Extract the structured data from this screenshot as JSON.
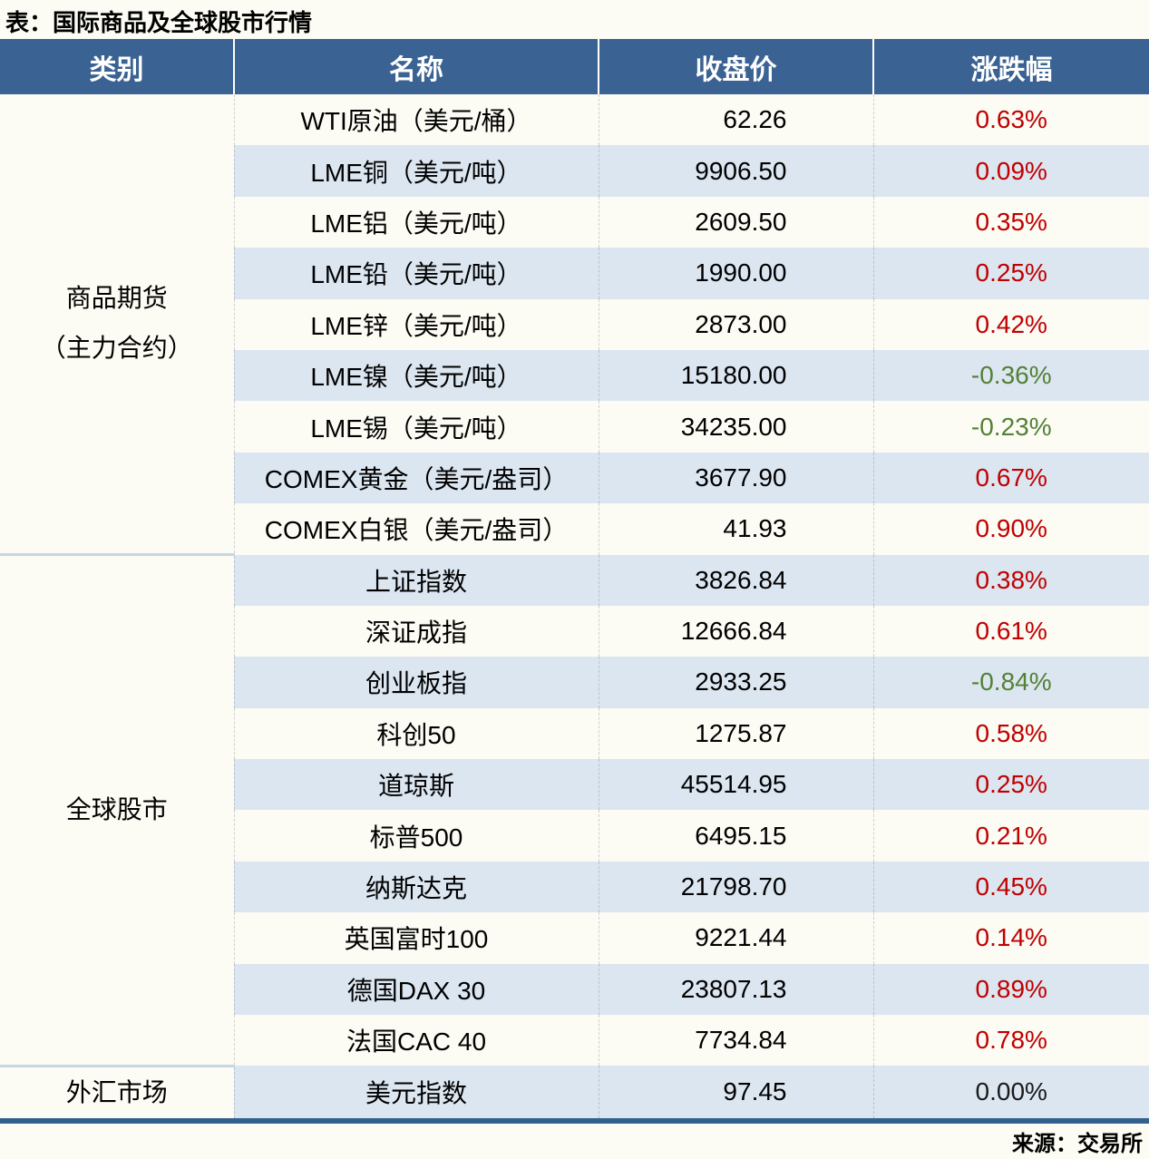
{
  "title": "表：国际商品及全球股市行情",
  "source": "来源：交易所",
  "colors": {
    "header_bg": "#3a6292",
    "header_fg": "#ffffff",
    "row_bg": "#fcfbf4",
    "alt_row": "#dce6f1",
    "up": "#c00000",
    "down": "#538135",
    "flat": "#1a1a1a",
    "bottom_border": "#33608f",
    "divider": "#c7d5e4"
  },
  "table": {
    "headers": [
      "类别",
      "名称",
      "收盘价",
      "涨跌幅"
    ],
    "groups": [
      {
        "category_lines": [
          "商品期货",
          "（主力合约）"
        ],
        "rows": [
          {
            "name": "WTI原油（美元/桶）",
            "close": "62.26",
            "change": "0.63%",
            "direction": "up"
          },
          {
            "name": "LME铜（美元/吨）",
            "close": "9906.50",
            "change": "0.09%",
            "direction": "up"
          },
          {
            "name": "LME铝（美元/吨）",
            "close": "2609.50",
            "change": "0.35%",
            "direction": "up"
          },
          {
            "name": "LME铅（美元/吨）",
            "close": "1990.00",
            "change": "0.25%",
            "direction": "up"
          },
          {
            "name": "LME锌（美元/吨）",
            "close": "2873.00",
            "change": "0.42%",
            "direction": "up"
          },
          {
            "name": "LME镍（美元/吨）",
            "close": "15180.00",
            "change": "-0.36%",
            "direction": "down"
          },
          {
            "name": "LME锡（美元/吨）",
            "close": "34235.00",
            "change": "-0.23%",
            "direction": "down"
          },
          {
            "name": "COMEX黄金（美元/盎司）",
            "close": "3677.90",
            "change": "0.67%",
            "direction": "up"
          },
          {
            "name": "COMEX白银（美元/盎司）",
            "close": "41.93",
            "change": "0.90%",
            "direction": "up"
          }
        ]
      },
      {
        "category_lines": [
          "全球股市"
        ],
        "rows": [
          {
            "name": "上证指数",
            "close": "3826.84",
            "change": "0.38%",
            "direction": "up"
          },
          {
            "name": "深证成指",
            "close": "12666.84",
            "change": "0.61%",
            "direction": "up"
          },
          {
            "name": "创业板指",
            "close": "2933.25",
            "change": "-0.84%",
            "direction": "down"
          },
          {
            "name": "科创50",
            "close": "1275.87",
            "change": "0.58%",
            "direction": "up"
          },
          {
            "name": "道琼斯",
            "close": "45514.95",
            "change": "0.25%",
            "direction": "up"
          },
          {
            "name": "标普500",
            "close": "6495.15",
            "change": "0.21%",
            "direction": "up"
          },
          {
            "name": "纳斯达克",
            "close": "21798.70",
            "change": "0.45%",
            "direction": "up"
          },
          {
            "name": "英国富时100",
            "close": "9221.44",
            "change": "0.14%",
            "direction": "up"
          },
          {
            "name": "德国DAX 30",
            "close": "23807.13",
            "change": "0.89%",
            "direction": "up"
          },
          {
            "name": "法国CAC 40",
            "close": "7734.84",
            "change": "0.78%",
            "direction": "up"
          }
        ]
      },
      {
        "category_lines": [
          "外汇市场"
        ],
        "rows": [
          {
            "name": "美元指数",
            "close": "97.45",
            "change": "0.00%",
            "direction": "flat"
          }
        ]
      }
    ]
  },
  "chart_data": {
    "type": "table",
    "title": "表：国际商品及全球股市行情",
    "columns": [
      "类别",
      "名称",
      "收盘价",
      "涨跌幅"
    ],
    "rows": [
      [
        "商品期货（主力合约）",
        "WTI原油（美元/桶）",
        62.26,
        "0.63%"
      ],
      [
        "商品期货（主力合约）",
        "LME铜（美元/吨）",
        9906.5,
        "0.09%"
      ],
      [
        "商品期货（主力合约）",
        "LME铝（美元/吨）",
        2609.5,
        "0.35%"
      ],
      [
        "商品期货（主力合约）",
        "LME铅（美元/吨）",
        1990.0,
        "0.25%"
      ],
      [
        "商品期货（主力合约）",
        "LME锌（美元/吨）",
        2873.0,
        "0.42%"
      ],
      [
        "商品期货（主力合约）",
        "LME镍（美元/吨）",
        15180.0,
        "-0.36%"
      ],
      [
        "商品期货（主力合约）",
        "LME锡（美元/吨）",
        34235.0,
        "-0.23%"
      ],
      [
        "商品期货（主力合约）",
        "COMEX黄金（美元/盎司）",
        3677.9,
        "0.67%"
      ],
      [
        "商品期货（主力合约）",
        "COMEX白银（美元/盎司）",
        41.93,
        "0.90%"
      ],
      [
        "全球股市",
        "上证指数",
        3826.84,
        "0.38%"
      ],
      [
        "全球股市",
        "深证成指",
        12666.84,
        "0.61%"
      ],
      [
        "全球股市",
        "创业板指",
        2933.25,
        "-0.84%"
      ],
      [
        "全球股市",
        "科创50",
        1275.87,
        "0.58%"
      ],
      [
        "全球股市",
        "道琼斯",
        45514.95,
        "0.25%"
      ],
      [
        "全球股市",
        "标普500",
        6495.15,
        "0.21%"
      ],
      [
        "全球股市",
        "纳斯达克",
        21798.7,
        "0.45%"
      ],
      [
        "全球股市",
        "英国富时100",
        9221.44,
        "0.14%"
      ],
      [
        "全球股市",
        "德国DAX 30",
        23807.13,
        "0.89%"
      ],
      [
        "全球股市",
        "法国CAC 40",
        7734.84,
        "0.78%"
      ],
      [
        "外汇市场",
        "美元指数",
        97.45,
        "0.00%"
      ]
    ],
    "legend": "red = 上涨 (up), green = 下跌 (down), black = 持平 (flat)",
    "source": "来源：交易所"
  }
}
